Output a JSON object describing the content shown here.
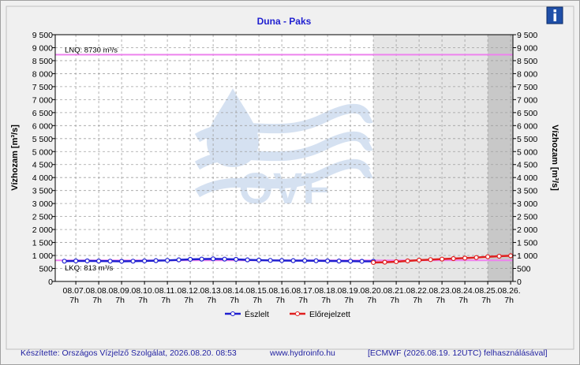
{
  "chart_data": {
    "type": "line",
    "title": "Duna - Paks",
    "ylabel": "Vízhozam [m³/s]",
    "y2label": "Vízhozam [m³/s]",
    "watermark": "OVF",
    "xlim": [
      -0.9,
      19.1
    ],
    "ylim": [
      0,
      9500
    ],
    "grid": true,
    "yticks": [
      0,
      500,
      {
        "value": 1000,
        "label": "1 000"
      },
      {
        "value": 1500,
        "label": "1 500"
      },
      {
        "value": 2000,
        "label": "2 000"
      },
      {
        "value": 2500,
        "label": "2 500"
      },
      {
        "value": 3000,
        "label": "3 000"
      },
      {
        "value": 3500,
        "label": "3 500"
      },
      {
        "value": 4000,
        "label": "4 000"
      },
      {
        "value": 4500,
        "label": "4 500"
      },
      {
        "value": 5000,
        "label": "5 000"
      },
      {
        "value": 5500,
        "label": "5 500"
      },
      {
        "value": 6000,
        "label": "6 000"
      },
      {
        "value": 6500,
        "label": "6 500"
      },
      {
        "value": 7000,
        "label": "7 000"
      },
      {
        "value": 7500,
        "label": "7 500"
      },
      {
        "value": 8000,
        "label": "8 000"
      },
      {
        "value": 8500,
        "label": "8 500"
      },
      {
        "value": 9000,
        "label": "9 000"
      },
      {
        "value": 9500,
        "label": "9 500"
      }
    ],
    "xticks": [
      {
        "value": 0,
        "label": "08.07.",
        "hour": "7h"
      },
      {
        "value": 1,
        "label": "08.08.",
        "hour": "7h"
      },
      {
        "value": 2,
        "label": "08.09.",
        "hour": "7h"
      },
      {
        "value": 3,
        "label": "08.10.",
        "hour": "7h"
      },
      {
        "value": 4,
        "label": "08.11.",
        "hour": "7h"
      },
      {
        "value": 5,
        "label": "08.12.",
        "hour": "7h"
      },
      {
        "value": 6,
        "label": "08.13.",
        "hour": "7h"
      },
      {
        "value": 7,
        "label": "08.14.",
        "hour": "7h"
      },
      {
        "value": 8,
        "label": "08.15.",
        "hour": "7h"
      },
      {
        "value": 9,
        "label": "08.16.",
        "hour": "7h"
      },
      {
        "value": 10,
        "label": "08.17.",
        "hour": "7h"
      },
      {
        "value": 11,
        "label": "08.18.",
        "hour": "7h"
      },
      {
        "value": 12,
        "label": "08.19.",
        "hour": "7h"
      },
      {
        "value": 13,
        "label": "08.20.",
        "hour": "7h"
      },
      {
        "value": 14,
        "label": "08.21.",
        "hour": "7h"
      },
      {
        "value": 15,
        "label": "08.22.",
        "hour": "7h"
      },
      {
        "value": 16,
        "label": "08.23.",
        "hour": "7h"
      },
      {
        "value": 17,
        "label": "08.24.",
        "hour": "7h"
      },
      {
        "value": 18,
        "label": "08.25.",
        "hour": "7h"
      },
      {
        "value": 19,
        "label": "08.26.",
        "hour": "7h"
      }
    ],
    "shaded_regions": [
      {
        "from": 13,
        "to": 19.1,
        "color": "#e6e6e6"
      },
      {
        "from": 18,
        "to": 19.1,
        "color": "#c8c8c8"
      }
    ],
    "reference_lines": [
      {
        "label": "LNQ: 8730  m³/s",
        "value": 8730,
        "color": "#ee82ee"
      },
      {
        "label": "LKQ: 813  m³/s",
        "value": 813,
        "color": "#ee82ee"
      }
    ],
    "series": [
      {
        "name": "Észlelt",
        "color": "#1f1fd0",
        "x": [
          -0.5,
          0,
          0.5,
          1,
          1.5,
          2,
          2.5,
          3,
          3.5,
          4,
          4.5,
          5,
          5.5,
          6,
          6.5,
          7,
          7.5,
          8,
          8.5,
          9,
          9.5,
          10,
          10.5,
          11,
          11.5,
          12,
          12.5,
          13
        ],
        "values": [
          780,
          790,
          790,
          785,
          780,
          775,
          780,
          790,
          800,
          810,
          830,
          850,
          860,
          870,
          860,
          850,
          830,
          820,
          810,
          805,
          800,
          800,
          795,
          790,
          785,
          780,
          775,
          775
        ]
      },
      {
        "name": "Előrejelzett",
        "color": "#e01f1f",
        "x": [
          13,
          13.5,
          14,
          14.5,
          15,
          15.5,
          16,
          16.5,
          17,
          17.5,
          18,
          18.5,
          19
        ],
        "values": [
          730,
          740,
          760,
          790,
          820,
          840,
          860,
          880,
          900,
          920,
          950,
          970,
          990
        ]
      }
    ],
    "footer": [
      "Készítette: Országos Vízjelző Szolgálat, 2026.08.20. 08:53",
      "www.hydroinfo.hu",
      "[ECMWF (2026.08.19. 12UTC) felhasználásával]"
    ]
  }
}
